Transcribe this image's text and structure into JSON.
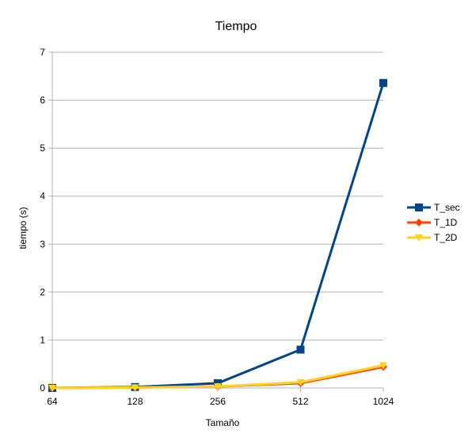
{
  "chart_data": {
    "type": "line",
    "title": "Tiempo",
    "xlabel": "Tamaño",
    "ylabel": "tiempo (s)",
    "categories": [
      "64",
      "128",
      "256",
      "512",
      "1024"
    ],
    "ylim": [
      0,
      7
    ],
    "yticks": [
      "0",
      "1",
      "2",
      "3",
      "4",
      "5",
      "6",
      "7"
    ],
    "grid": "horizontal",
    "legend_position": "right",
    "series": [
      {
        "name": "T_sec",
        "values": [
          0.0,
          0.02,
          0.1,
          0.8,
          6.36
        ],
        "color": "#004586",
        "marker": "square"
      },
      {
        "name": "T_1D",
        "values": [
          0.0,
          0.01,
          0.03,
          0.1,
          0.44
        ],
        "color": "#ff420e",
        "marker": "diamond"
      },
      {
        "name": "T_2D",
        "values": [
          0.0,
          0.01,
          0.03,
          0.12,
          0.47
        ],
        "color": "#ffd320",
        "marker": "triangle-down"
      }
    ]
  }
}
